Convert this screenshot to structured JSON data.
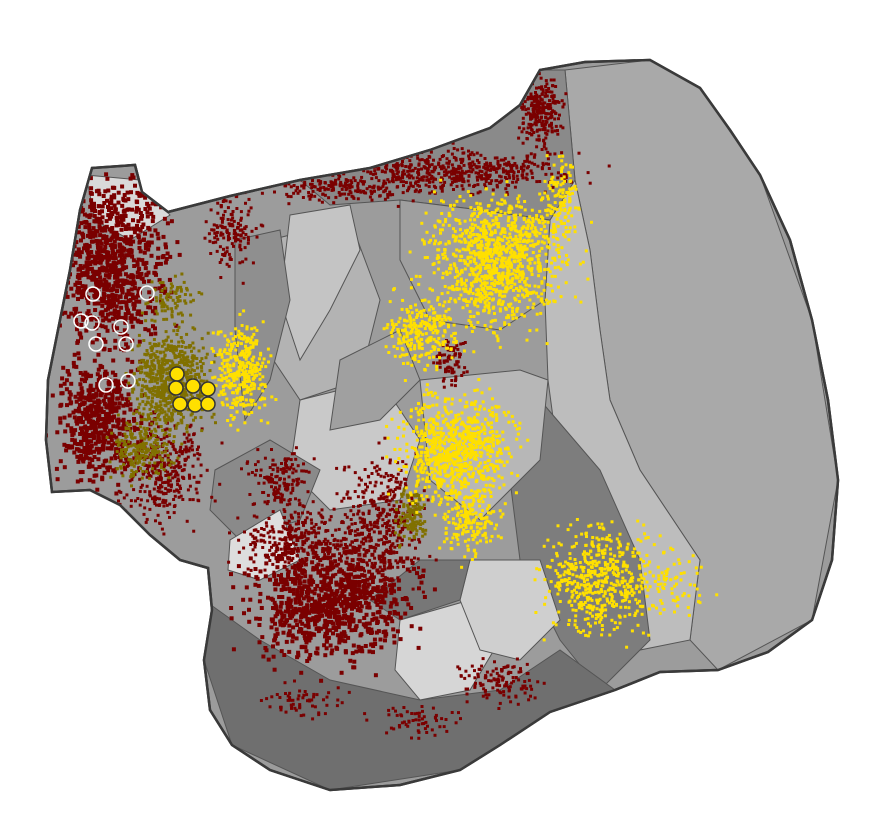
{
  "figure": {
    "type": "flattened-cortical-surface-map",
    "background_color": "#ffffff",
    "surface": {
      "outline_color": "#3a3a3a",
      "region_fills": [
        "#6e6e6e",
        "#7f7f7f",
        "#8c8c8c",
        "#9a9a9a",
        "#a8a8a8",
        "#b6b6b6",
        "#c6c6c6",
        "#d8d8d8"
      ],
      "boundary_color": "#555555"
    },
    "point_layers": [
      {
        "id": "dark-red",
        "color": "#7a0000"
      },
      {
        "id": "yellow",
        "color": "#ffe000"
      },
      {
        "id": "olive",
        "color": "#807000"
      }
    ],
    "markers": {
      "open_circles": {
        "count": 9,
        "stroke": "#ffffff",
        "fill": "none"
      },
      "filled_circles": {
        "count": 7,
        "fill": "#ffe000",
        "stroke": "#333333"
      }
    }
  }
}
